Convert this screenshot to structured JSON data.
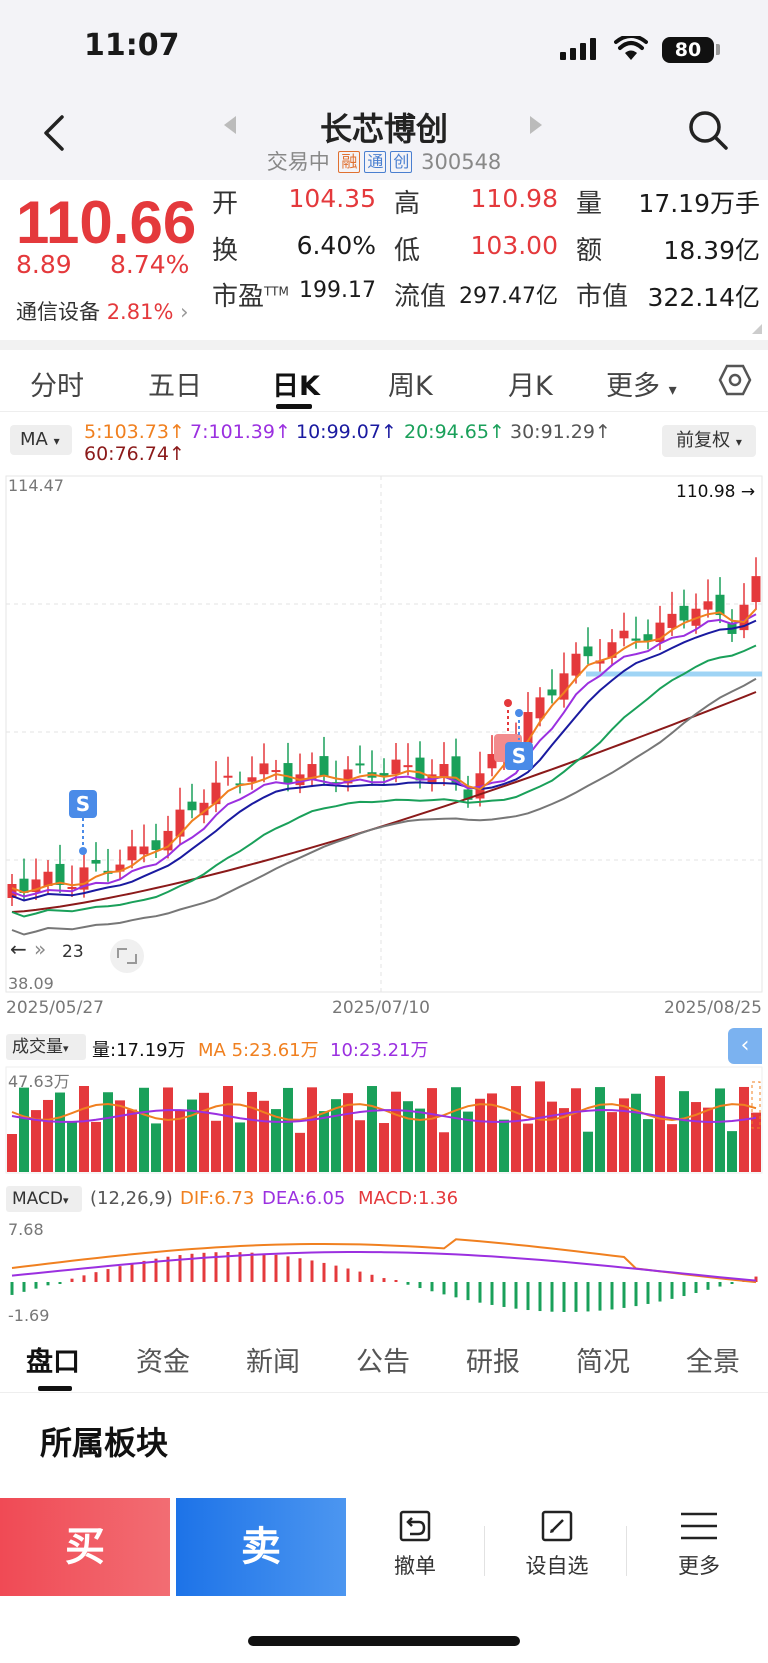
{
  "status": {
    "time": "11:07",
    "battery": "80"
  },
  "header": {
    "title": "长芯博创",
    "status_text": "交易中",
    "tags": [
      "融",
      "通",
      "创"
    ],
    "code": "300548"
  },
  "quote": {
    "price": "110.66",
    "change": "8.89",
    "change_pct": "8.74%",
    "sector_name": "通信设备",
    "sector_pct": "2.81%",
    "fields": [
      {
        "label": "开",
        "value": "104.35",
        "color": "red"
      },
      {
        "label": "高",
        "value": "110.98",
        "color": "red"
      },
      {
        "label": "量",
        "value": "17.19万手",
        "color": "black"
      },
      {
        "label": "换",
        "value": "6.40%",
        "color": "black"
      },
      {
        "label": "低",
        "value": "103.00",
        "color": "red"
      },
      {
        "label": "额",
        "value": "18.39亿",
        "color": "black"
      },
      {
        "label": "市盈",
        "label_sup": "TTM",
        "value": "199.17",
        "color": "black"
      },
      {
        "label": "流值",
        "value": "297.47亿",
        "color": "black"
      },
      {
        "label": "市值",
        "value": "322.14亿",
        "color": "black"
      }
    ]
  },
  "period_tabs": [
    "分时",
    "五日",
    "日K",
    "周K",
    "月K",
    "更多"
  ],
  "ma": {
    "selector": "MA",
    "items": [
      {
        "text": "5:103.73↑",
        "color": "#f08020"
      },
      {
        "text": "7:101.39↑",
        "color": "#9b30e0"
      },
      {
        "text": "10:99.07↑",
        "color": "#1a1aa0"
      },
      {
        "text": "20:94.65↑",
        "color": "#1aa05a"
      },
      {
        "text": "30:91.29↑",
        "color": "#555555"
      },
      {
        "text": "60:76.74↑",
        "color": "#8b1a1a"
      }
    ],
    "adjust": "前复权"
  },
  "kline": {
    "y_max_label": "114.47",
    "y_min_label": "38.09",
    "high_marker": "110.98",
    "left_marker": "23",
    "dates": [
      "2025/05/27",
      "2025/07/10",
      "2025/08/25"
    ],
    "signal_letter": "S"
  },
  "volume": {
    "selector": "成交量",
    "vol_text": "量:17.19万",
    "ma5_text": "MA 5:23.61万",
    "ma10_text": "10:23.21万",
    "max_label": "47.63万",
    "colors": {
      "ma5": "#f08020",
      "ma10": "#9b30e0"
    }
  },
  "macd": {
    "selector": "MACD",
    "params": "(12,26,9)",
    "dif": "DIF:6.73",
    "dea": "DEA:6.05",
    "macd": "MACD:1.36",
    "max_label": "7.68",
    "min_label": "-1.69"
  },
  "bottom_tabs": [
    "盘口",
    "资金",
    "新闻",
    "公告",
    "研报",
    "简况",
    "全景"
  ],
  "section_title": "所属板块",
  "actions": {
    "buy": "买",
    "sell": "卖",
    "cancel": "撤单",
    "watch": "设自选",
    "more": "更多"
  }
}
